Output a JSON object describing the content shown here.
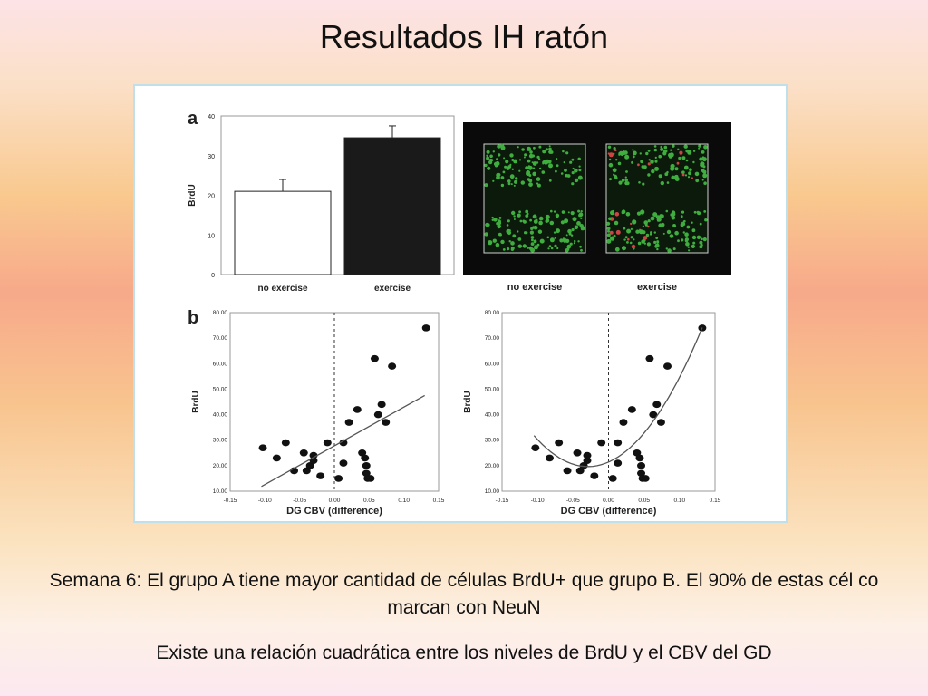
{
  "slide": {
    "title": "Resultados IH ratón",
    "caption_1": "Semana 6: El grupo A tiene mayor cantidad de células BrdU+ que grupo B. El 90% de estas cél co marcan con NeuN",
    "caption_2": "Existe una relación cuadrática entre los niveles de BrdU y el CBV del GD"
  },
  "figure": {
    "panel_a_letter": "a",
    "panel_b_letter": "b",
    "micrograph_labels": [
      "no exercise",
      "exercise"
    ]
  },
  "chart_data": [
    {
      "type": "bar",
      "categories": [
        "no exercise",
        "exercise"
      ],
      "values": [
        21,
        34.5
      ],
      "errors": [
        3,
        3
      ],
      "colors": [
        "#ffffff",
        "#1a1a1a"
      ],
      "ylabel": "BrdU",
      "xlabel": "",
      "ylim": [
        0,
        40
      ],
      "yticks": [
        0,
        10,
        20,
        30,
        40
      ]
    },
    {
      "type": "scatter",
      "xlabel": "DG CBV (difference)",
      "ylabel": "BrdU",
      "xlim": [
        -0.15,
        0.15
      ],
      "ylim": [
        10,
        80
      ],
      "xticks": [
        "-0.15",
        "-0.10",
        "-0.05",
        "0.00",
        "0.05",
        "0.10",
        "0.15"
      ],
      "yticks": [
        "10.00",
        "20.00",
        "30.00",
        "40.00",
        "50.00",
        "60.00",
        "70.00",
        "80.00"
      ],
      "reference_line_x": 0,
      "fit": "linear",
      "points": [
        [
          -0.103,
          27
        ],
        [
          -0.083,
          23
        ],
        [
          -0.07,
          29
        ],
        [
          -0.058,
          18
        ],
        [
          -0.044,
          25
        ],
        [
          -0.04,
          18
        ],
        [
          -0.035,
          20
        ],
        [
          -0.03,
          22
        ],
        [
          -0.03,
          24
        ],
        [
          -0.02,
          16
        ],
        [
          -0.01,
          29
        ],
        [
          0.006,
          15
        ],
        [
          0.013,
          21
        ],
        [
          0.013,
          29
        ],
        [
          0.021,
          37
        ],
        [
          0.033,
          42
        ],
        [
          0.04,
          25
        ],
        [
          0.044,
          23
        ],
        [
          0.046,
          17
        ],
        [
          0.046,
          20
        ],
        [
          0.048,
          15
        ],
        [
          0.052,
          15
        ],
        [
          0.058,
          62
        ],
        [
          0.063,
          40
        ],
        [
          0.068,
          44
        ],
        [
          0.074,
          37
        ],
        [
          0.083,
          59
        ],
        [
          0.132,
          74
        ]
      ]
    },
    {
      "type": "scatter",
      "xlabel": "DG CBV (difference)",
      "ylabel": "BrdU",
      "xlim": [
        -0.15,
        0.15
      ],
      "ylim": [
        10,
        80
      ],
      "xticks": [
        "-0.15",
        "-0.10",
        "-0.05",
        "0.00",
        "0.05",
        "0.10",
        "0.15"
      ],
      "yticks": [
        "10.00",
        "20.00",
        "30.00",
        "40.00",
        "50.00",
        "60.00",
        "70.00",
        "80.00"
      ],
      "reference_line_x": 0,
      "fit": "quadratic",
      "points": [
        [
          -0.103,
          27
        ],
        [
          -0.083,
          23
        ],
        [
          -0.07,
          29
        ],
        [
          -0.058,
          18
        ],
        [
          -0.044,
          25
        ],
        [
          -0.04,
          18
        ],
        [
          -0.035,
          20
        ],
        [
          -0.03,
          22
        ],
        [
          -0.03,
          24
        ],
        [
          -0.02,
          16
        ],
        [
          -0.01,
          29
        ],
        [
          0.006,
          15
        ],
        [
          0.013,
          21
        ],
        [
          0.013,
          29
        ],
        [
          0.021,
          37
        ],
        [
          0.033,
          42
        ],
        [
          0.04,
          25
        ],
        [
          0.044,
          23
        ],
        [
          0.046,
          17
        ],
        [
          0.046,
          20
        ],
        [
          0.048,
          15
        ],
        [
          0.052,
          15
        ],
        [
          0.058,
          62
        ],
        [
          0.063,
          40
        ],
        [
          0.068,
          44
        ],
        [
          0.074,
          37
        ],
        [
          0.083,
          59
        ],
        [
          0.132,
          74
        ]
      ]
    }
  ]
}
